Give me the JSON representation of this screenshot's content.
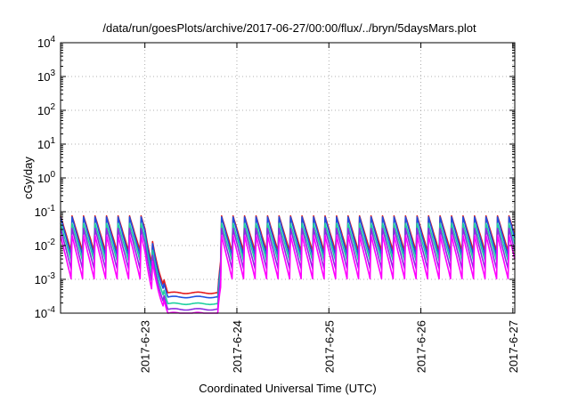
{
  "chart_data": {
    "type": "line",
    "title": "/data/run/goesPlots/archive/2017-06-27/00:00/flux/../bryn/5daysMars.plot",
    "xlabel": "Coordinated Universal Time (UTC)",
    "ylabel": "cGy/day",
    "y_scale": "log",
    "ylim": [
      0.0001,
      10000
    ],
    "xlim": [
      "2017-06-22T02:00",
      "2017-06-27T00:30"
    ],
    "x_ticks": [
      "2017-6-23",
      "2017-6-24",
      "2017-6-25",
      "2017-6-26",
      "2017-6-27"
    ],
    "y_ticks": [
      {
        "base": "10",
        "exp": "-4"
      },
      {
        "base": "10",
        "exp": "-3"
      },
      {
        "base": "10",
        "exp": "-2"
      },
      {
        "base": "10",
        "exp": "-1"
      },
      {
        "base": "10",
        "exp": "0"
      },
      {
        "base": "10",
        "exp": "1"
      },
      {
        "base": "10",
        "exp": "2"
      },
      {
        "base": "10",
        "exp": "3"
      },
      {
        "base": "10",
        "exp": "4"
      }
    ],
    "grid": "dotted",
    "legend": "none",
    "sawtooth_period_hours": 3,
    "series": [
      {
        "color": "#e41a1c",
        "peak": 0.075,
        "trough": 0.0055,
        "floor": 0.0004
      },
      {
        "color": "#1f4fe0",
        "peak": 0.07,
        "trough": 0.004,
        "floor": 0.0003
      },
      {
        "color": "#1fd0a0",
        "peak": 0.045,
        "trough": 0.0028,
        "floor": 0.00019
      },
      {
        "color": "#8a2be2",
        "peak": 0.032,
        "trough": 0.0016,
        "floor": 0.00013
      },
      {
        "color": "#ff00ff",
        "peak": 0.02,
        "trough": 0.0008,
        "floor": 0.0001
      }
    ],
    "depletion": {
      "start": "2017-06-23T00:00",
      "floor_reached": "2017-06-23T06:00",
      "end": "2017-06-23T19:00",
      "recovered": "2017-06-23T20:00"
    }
  }
}
